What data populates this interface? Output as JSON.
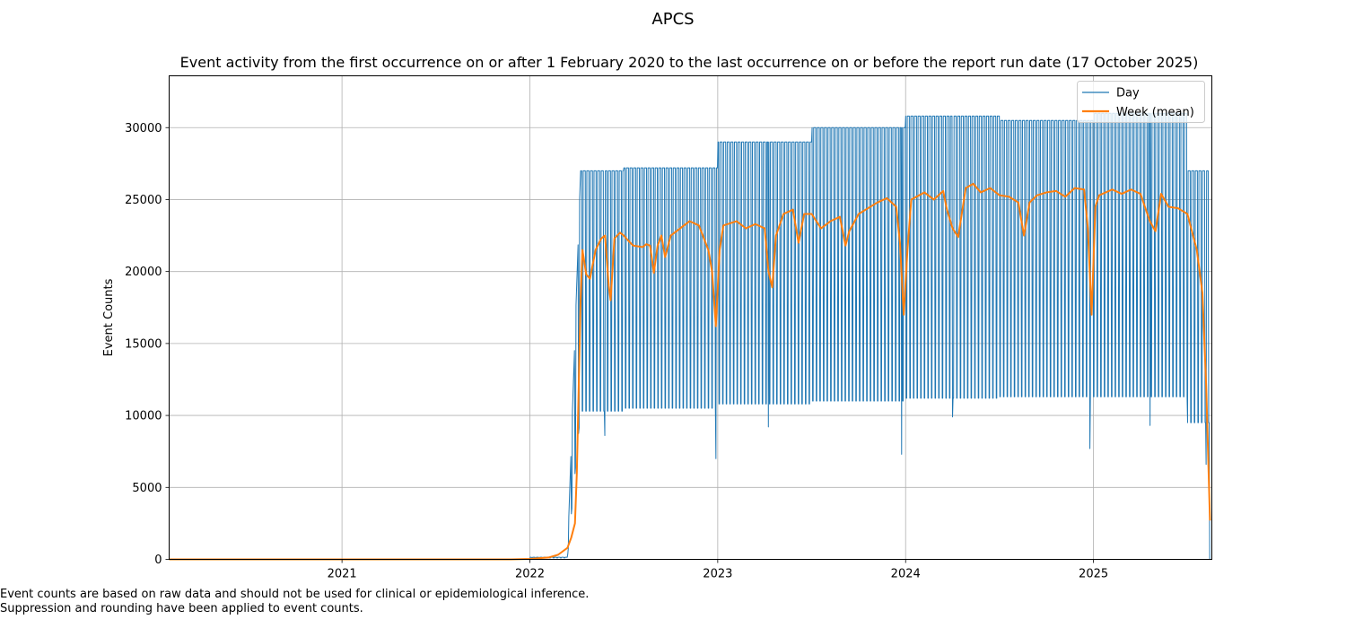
{
  "chart_data": {
    "type": "line",
    "title": "APCS",
    "subtitle": "Event activity from the first occurrence on or after 1 February 2020 to the last occurrence on or before the report run date (17 October 2025)",
    "xlabel": "",
    "ylabel": "Event Counts",
    "xlim": [
      2020.08,
      2025.63
    ],
    "ylim": [
      0,
      33600
    ],
    "x_ticks": [
      {
        "value": 2021,
        "label": "2021"
      },
      {
        "value": 2022,
        "label": "2022"
      },
      {
        "value": 2023,
        "label": "2023"
      },
      {
        "value": 2024,
        "label": "2024"
      },
      {
        "value": 2025,
        "label": "2025"
      }
    ],
    "y_ticks": [
      {
        "value": 0,
        "label": "0"
      },
      {
        "value": 5000,
        "label": "5000"
      },
      {
        "value": 10000,
        "label": "10000"
      },
      {
        "value": 15000,
        "label": "15000"
      },
      {
        "value": 20000,
        "label": "20000"
      },
      {
        "value": 25000,
        "label": "25000"
      },
      {
        "value": 30000,
        "label": "30000"
      }
    ],
    "grid": true,
    "legend": {
      "position": "top-right",
      "entries": [
        "Day",
        "Week (mean)"
      ]
    },
    "series": [
      {
        "name": "Day",
        "color": "#1f77b4",
        "sampling": "daily",
        "weekly_pattern": "weekday high, weekend low",
        "segments": [
          {
            "x": [
              2020.08,
              2022.0
            ],
            "weekday": 0,
            "weekend": 0
          },
          {
            "x": [
              2022.0,
              2022.2
            ],
            "weekday": 150,
            "weekend": 100
          },
          {
            "x": [
              2022.27,
              2022.5
            ],
            "weekday": 27000,
            "weekend": 10300
          },
          {
            "x": [
              2022.5,
              2023.0
            ],
            "weekday": 27200,
            "weekend": 10500
          },
          {
            "x": [
              2023.0,
              2023.5
            ],
            "weekday": 29000,
            "weekend": 10800
          },
          {
            "x": [
              2023.5,
              2024.0
            ],
            "weekday": 30000,
            "weekend": 11000
          },
          {
            "x": [
              2024.0,
              2024.5
            ],
            "weekday": 30800,
            "weekend": 11200
          },
          {
            "x": [
              2024.5,
              2025.0
            ],
            "weekday": 30500,
            "weekend": 11300
          },
          {
            "x": [
              2025.0,
              2025.5
            ],
            "weekday": 31000,
            "weekend": 11300
          },
          {
            "x": [
              2025.5,
              2025.62
            ],
            "weekday": 27000,
            "weekend": 9500
          }
        ],
        "dips": [
          {
            "x": 2022.4,
            "value": 8600
          },
          {
            "x": 2022.99,
            "value": 7000
          },
          {
            "x": 2023.27,
            "value": 9200
          },
          {
            "x": 2023.98,
            "value": 7300
          },
          {
            "x": 2024.25,
            "value": 9900
          },
          {
            "x": 2024.98,
            "value": 7700
          },
          {
            "x": 2025.3,
            "value": 9300
          },
          {
            "x": 2025.6,
            "value": 6600
          },
          {
            "x": 2025.625,
            "value": 0
          }
        ]
      },
      {
        "name": "Week (mean)",
        "color": "#ff7f0e",
        "x": [
          2020.08,
          2021.0,
          2021.9,
          2022.0,
          2022.1,
          2022.15,
          2022.2,
          2022.22,
          2022.24,
          2022.25,
          2022.26,
          2022.27,
          2022.28,
          2022.3,
          2022.32,
          2022.35,
          2022.38,
          2022.4,
          2022.42,
          2022.43,
          2022.45,
          2022.48,
          2022.5,
          2022.52,
          2022.55,
          2022.6,
          2022.62,
          2022.64,
          2022.66,
          2022.68,
          2022.7,
          2022.72,
          2022.75,
          2022.8,
          2022.85,
          2022.9,
          2022.95,
          2022.97,
          2022.99,
          2023.01,
          2023.03,
          2023.1,
          2023.15,
          2023.2,
          2023.25,
          2023.27,
          2023.29,
          2023.31,
          2023.35,
          2023.4,
          2023.43,
          2023.46,
          2023.5,
          2023.55,
          2023.6,
          2023.65,
          2023.68,
          2023.7,
          2023.75,
          2023.8,
          2023.85,
          2023.9,
          2023.95,
          2023.97,
          2023.99,
          2024.01,
          2024.03,
          2024.1,
          2024.15,
          2024.2,
          2024.22,
          2024.25,
          2024.28,
          2024.32,
          2024.36,
          2024.4,
          2024.45,
          2024.5,
          2024.55,
          2024.6,
          2024.63,
          2024.66,
          2024.7,
          2024.75,
          2024.8,
          2024.85,
          2024.9,
          2024.95,
          2024.97,
          2024.99,
          2025.01,
          2025.03,
          2025.1,
          2025.15,
          2025.2,
          2025.25,
          2025.3,
          2025.33,
          2025.36,
          2025.4,
          2025.45,
          2025.5,
          2025.55,
          2025.58,
          2025.6,
          2025.62
        ],
        "values": [
          0,
          0,
          0,
          30,
          130,
          320,
          800,
          1500,
          2500,
          6000,
          12000,
          18000,
          21500,
          19800,
          19500,
          21500,
          22300,
          22500,
          19000,
          18000,
          22300,
          22700,
          22500,
          22200,
          21800,
          21700,
          21900,
          21800,
          19900,
          21800,
          22500,
          21000,
          22500,
          23000,
          23500,
          23200,
          21500,
          20000,
          16200,
          21500,
          23200,
          23500,
          23000,
          23300,
          23000,
          20000,
          18900,
          22500,
          24000,
          24300,
          22000,
          24000,
          24000,
          23000,
          23500,
          23800,
          21800,
          22800,
          24000,
          24400,
          24800,
          25100,
          24500,
          22000,
          17000,
          21500,
          25000,
          25500,
          25000,
          25600,
          24300,
          23000,
          22400,
          25800,
          26100,
          25500,
          25800,
          25300,
          25200,
          24800,
          22500,
          24800,
          25300,
          25500,
          25600,
          25200,
          25800,
          25700,
          23000,
          17000,
          24500,
          25300,
          25700,
          25400,
          25700,
          25400,
          23500,
          22800,
          25400,
          24500,
          24400,
          24000,
          21500,
          18500,
          12000,
          2700
        ]
      }
    ]
  },
  "footnote": {
    "line1": "Event counts are based on raw data and should not be used for clinical or epidemiological inference.",
    "line2": "Suppression and rounding have been applied to event counts."
  }
}
